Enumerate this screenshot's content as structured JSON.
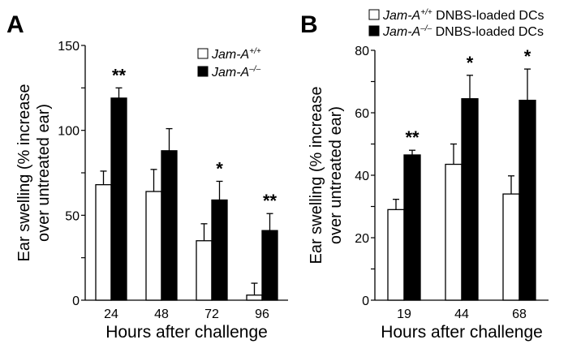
{
  "chart_data": [
    {
      "type": "bar",
      "panel_label": "A",
      "title": "",
      "xlabel": "Hours after challenge",
      "ylabel_lines": [
        "Ear swelling (% increase",
        "over untreated ear)"
      ],
      "categories": [
        "24",
        "48",
        "72",
        "96"
      ],
      "ylim": [
        0,
        150
      ],
      "yticks": [
        0,
        50,
        100,
        150
      ],
      "grid": false,
      "legend_position": "top-right",
      "series": [
        {
          "name": "Jam-A",
          "superscript": "+/+",
          "fill": "#ffffff",
          "values": [
            68,
            64,
            35,
            3
          ],
          "errors": [
            8,
            13,
            10,
            7
          ],
          "error_style": "up"
        },
        {
          "name": "Jam-A",
          "superscript": "–/–",
          "fill": "#000000",
          "values": [
            119,
            88,
            59,
            41
          ],
          "errors": [
            6,
            13,
            11,
            10
          ],
          "error_style": "up"
        }
      ],
      "significance": [
        "**",
        "",
        "*",
        "**"
      ]
    },
    {
      "type": "bar",
      "panel_label": "B",
      "title": "",
      "xlabel": "Hours after challenge",
      "ylabel_lines": [
        "Ear swelling (% increase",
        "over untreated ear)"
      ],
      "categories": [
        "19",
        "44",
        "68"
      ],
      "ylim": [
        0,
        80
      ],
      "yticks": [
        0,
        20,
        40,
        60,
        80
      ],
      "grid": false,
      "legend_position": "top",
      "series": [
        {
          "name": "Jam-A",
          "superscript": "+/+",
          "suffix": " DNBS-loaded DCs",
          "fill": "#ffffff",
          "values": [
            29,
            43.5,
            34
          ],
          "errors": [
            3.3,
            6.5,
            5.8
          ],
          "error_style": "both"
        },
        {
          "name": "Jam-A",
          "superscript": "–/–",
          "suffix": " DNBS-loaded DCs",
          "fill": "#000000",
          "values": [
            46.5,
            64.5,
            64
          ],
          "errors": [
            1.5,
            7.5,
            10
          ],
          "error_style": "up"
        }
      ],
      "significance": [
        "**",
        "*",
        "*"
      ]
    }
  ]
}
